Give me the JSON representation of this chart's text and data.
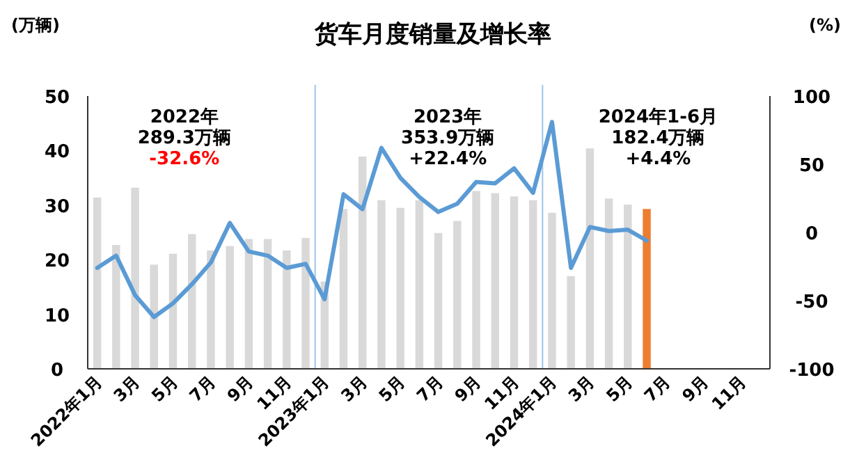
{
  "chart_data": {
    "type": "bar",
    "title": "货车月度销量及增长率",
    "ylabel": "(万辆)",
    "y2label": "(%)",
    "categories": [
      "2022年1月",
      null,
      "3月",
      null,
      "5月",
      null,
      "7月",
      null,
      "9月",
      null,
      "11月",
      null,
      "2023年1月",
      null,
      "3月",
      null,
      "5月",
      null,
      "7月",
      null,
      "9月",
      null,
      "11月",
      null,
      "2024年1月",
      null,
      "3月",
      null,
      "5月",
      null,
      "7月",
      null,
      "9月",
      null,
      "11月",
      null
    ],
    "series": [
      {
        "axis": "y",
        "colors": [
          "#d9d9d9",
          "#d9d9d9",
          "#d9d9d9",
          "#d9d9d9",
          "#d9d9d9",
          "#d9d9d9",
          "#d9d9d9",
          "#d9d9d9",
          "#d9d9d9",
          "#d9d9d9",
          "#d9d9d9",
          "#d9d9d9",
          "#d9d9d9",
          "#d9d9d9",
          "#d9d9d9",
          "#d9d9d9",
          "#d9d9d9",
          "#d9d9d9",
          "#d9d9d9",
          "#d9d9d9",
          "#d9d9d9",
          "#d9d9d9",
          "#d9d9d9",
          "#d9d9d9",
          "#d9d9d9",
          "#d9d9d9",
          "#d9d9d9",
          "#d9d9d9",
          "#d9d9d9",
          "#ed7d31",
          null,
          null,
          null,
          null,
          null,
          null
        ],
        "values": [
          31.4,
          22.7,
          33.2,
          19.1,
          21.1,
          24.7,
          21.7,
          22.5,
          23.8,
          23.8,
          21.7,
          24.0,
          16.0,
          29.3,
          38.9,
          30.9,
          29.5,
          30.9,
          24.9,
          27.1,
          32.6,
          32.2,
          31.6,
          30.9,
          28.6,
          17,
          40.4,
          31.2,
          30.1,
          29.3,
          null,
          null,
          null,
          null,
          null,
          null
        ]
      },
      {
        "type": "line",
        "axis": "y2",
        "color": "#5b9bd5",
        "values": [
          -26,
          -17,
          -46,
          -62,
          -52,
          -38,
          -22,
          7,
          -14,
          -17,
          -26,
          -23,
          -49,
          28,
          17,
          62,
          40,
          26,
          15,
          21,
          37,
          36,
          47,
          29,
          81,
          -26,
          4,
          1,
          2,
          -6,
          null,
          null,
          null,
          null,
          null,
          null
        ]
      }
    ],
    "ylim": [
      0,
      50
    ],
    "yticks": [
      0,
      10,
      20,
      30,
      40,
      50
    ],
    "y2lim": [
      -100,
      100
    ],
    "y2ticks": [
      -100,
      -50,
      0,
      50,
      100
    ],
    "annotations": [
      "2022年",
      "289.3万辆",
      "-32.6%",
      "2023年",
      "353.9万辆",
      "+22.4%",
      "2024年1-6月",
      "182.4万辆",
      "+4.4%"
    ],
    "grid": false,
    "marker": "none",
    "line_style": "solid"
  }
}
